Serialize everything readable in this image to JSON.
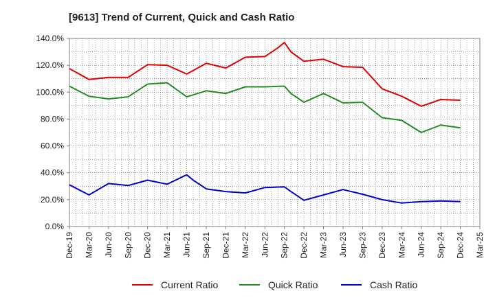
{
  "chart_data": {
    "type": "line",
    "title": "[9613]  Trend of Current, Quick and Cash Ratio",
    "xlabel": "",
    "ylabel": "",
    "ylim": [
      0,
      140
    ],
    "y_ticks": [
      "0.0%",
      "20.0%",
      "40.0%",
      "60.0%",
      "80.0%",
      "100.0%",
      "120.0%",
      "140.0%"
    ],
    "x_tick_labels": [
      "Dec-19",
      "Mar-20",
      "Jun-20",
      "Sep-20",
      "Dec-20",
      "Mar-21",
      "Jun-21",
      "Sep-21",
      "Dec-21",
      "Mar-22",
      "Jun-22",
      "Sep-22",
      "Dec-22",
      "Mar-23",
      "Jun-23",
      "Sep-23",
      "Dec-23",
      "Mar-24",
      "Jun-24",
      "Sep-24",
      "Dec-24",
      "Mar-25"
    ],
    "x_range_months": [
      0,
      63
    ],
    "grid": true,
    "legend_position": "bottom",
    "series": [
      {
        "name": "Current Ratio",
        "color": "#e00000",
        "points": [
          [
            0,
            117.5
          ],
          [
            3,
            109.5
          ],
          [
            6,
            111
          ],
          [
            9,
            111
          ],
          [
            12,
            120.5
          ],
          [
            15,
            120
          ],
          [
            18,
            113.5
          ],
          [
            21,
            121.5
          ],
          [
            24,
            118
          ],
          [
            27,
            126
          ],
          [
            30,
            126.5
          ],
          [
            32,
            133
          ],
          [
            33,
            137
          ],
          [
            34,
            130
          ],
          [
            36,
            123
          ],
          [
            39,
            124.5
          ],
          [
            42,
            119
          ],
          [
            45,
            118.5
          ],
          [
            48,
            102.5
          ],
          [
            51,
            97
          ],
          [
            54,
            89.5
          ],
          [
            57,
            94.5
          ],
          [
            60,
            94
          ]
        ]
      },
      {
        "name": "Quick Ratio",
        "color": "#228b22",
        "points": [
          [
            0,
            104.5
          ],
          [
            3,
            97
          ],
          [
            6,
            95
          ],
          [
            9,
            96.5
          ],
          [
            12,
            106
          ],
          [
            15,
            107
          ],
          [
            18,
            96.5
          ],
          [
            21,
            101
          ],
          [
            24,
            99
          ],
          [
            27,
            104
          ],
          [
            30,
            104
          ],
          [
            33,
            104.5
          ],
          [
            34,
            99
          ],
          [
            36,
            92.5
          ],
          [
            39,
            99
          ],
          [
            42,
            92
          ],
          [
            45,
            92.5
          ],
          [
            48,
            81
          ],
          [
            51,
            79
          ],
          [
            54,
            70
          ],
          [
            57,
            75.5
          ],
          [
            60,
            73.5
          ]
        ]
      },
      {
        "name": "Cash Ratio",
        "color": "#0000cc",
        "points": [
          [
            0,
            31
          ],
          [
            3,
            23.5
          ],
          [
            6,
            32
          ],
          [
            9,
            30.5
          ],
          [
            12,
            34.5
          ],
          [
            15,
            31.5
          ],
          [
            18,
            38.5
          ],
          [
            19,
            34.5
          ],
          [
            21,
            28
          ],
          [
            24,
            26
          ],
          [
            27,
            25
          ],
          [
            30,
            29
          ],
          [
            33,
            29.5
          ],
          [
            34,
            26
          ],
          [
            36,
            19.5
          ],
          [
            39,
            23.5
          ],
          [
            42,
            27.5
          ],
          [
            45,
            24
          ],
          [
            48,
            20
          ],
          [
            51,
            17.5
          ],
          [
            54,
            18.5
          ],
          [
            57,
            19
          ],
          [
            60,
            18.5
          ]
        ]
      }
    ]
  }
}
